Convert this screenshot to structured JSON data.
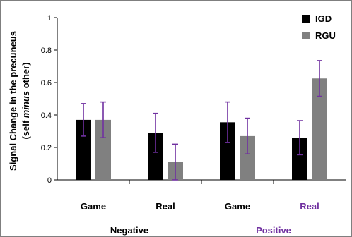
{
  "chart_data": {
    "type": "bar",
    "ylabel_line1": "Signal Change in the precuneus",
    "ylabel_line2_prefix": "(self ",
    "ylabel_line2_italic": "minus",
    "ylabel_line2_suffix": " other)",
    "ylim": [
      0,
      1
    ],
    "yticks": [
      "0",
      "0.2",
      "0.4",
      "0.6",
      "0.8",
      "1"
    ],
    "categories": [
      "Game",
      "Real",
      "Game",
      "Real"
    ],
    "category_colors": [
      "#000000",
      "#000000",
      "#000000",
      "#7030a0"
    ],
    "groups": [
      {
        "label": "Negative",
        "color": "#000000"
      },
      {
        "label": "Positive",
        "color": "#7030a0"
      }
    ],
    "series": [
      {
        "name": "IGD",
        "color": "#000000",
        "values": [
          0.37,
          0.29,
          0.355,
          0.26
        ],
        "err": [
          0.1,
          0.12,
          0.125,
          0.105
        ]
      },
      {
        "name": "RGU",
        "color": "#808080",
        "values": [
          0.37,
          0.11,
          0.27,
          0.625
        ],
        "err": [
          0.11,
          0.11,
          0.11,
          0.11
        ]
      }
    ],
    "error_bar_color": "#7030a0",
    "grid": false,
    "legend_position": "top-right"
  }
}
